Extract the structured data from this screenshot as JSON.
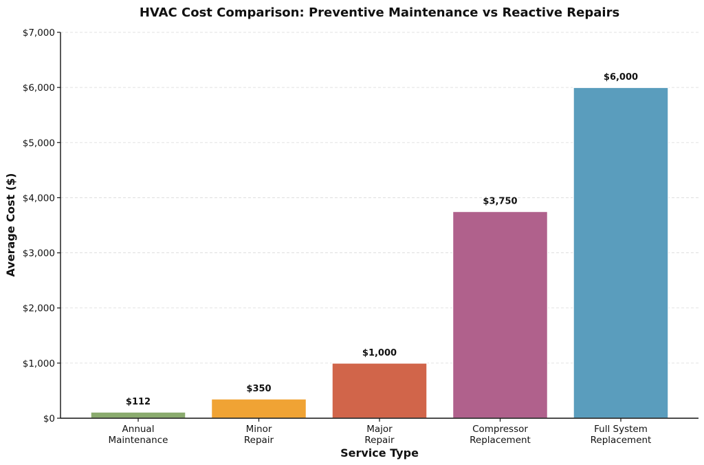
{
  "chart_data": {
    "type": "bar",
    "title": "HVAC Cost Comparison: Preventive Maintenance vs Reactive Repairs",
    "xlabel": "Service Type",
    "ylabel": "Average Cost ($)",
    "categories": [
      [
        "Annual",
        "Maintenance"
      ],
      [
        "Minor",
        "Repair"
      ],
      [
        "Major",
        "Repair"
      ],
      [
        "Compressor",
        "Replacement"
      ],
      [
        "Full System",
        "Replacement"
      ]
    ],
    "values": [
      112,
      350,
      1000,
      3750,
      6000
    ],
    "value_labels": [
      "$112",
      "$350",
      "$1,000",
      "$3,750",
      "$6,000"
    ],
    "colors": [
      "#8aab6e",
      "#f0a334",
      "#d1654a",
      "#b0618c",
      "#5a9dbd"
    ],
    "ylim": [
      0,
      7000
    ],
    "yticks": [
      0,
      1000,
      2000,
      3000,
      4000,
      5000,
      6000,
      7000
    ],
    "ytick_labels": [
      "$0",
      "$1,000",
      "$2,000",
      "$3,000",
      "$4,000",
      "$5,000",
      "$6,000",
      "$7,000"
    ],
    "grid": true
  }
}
